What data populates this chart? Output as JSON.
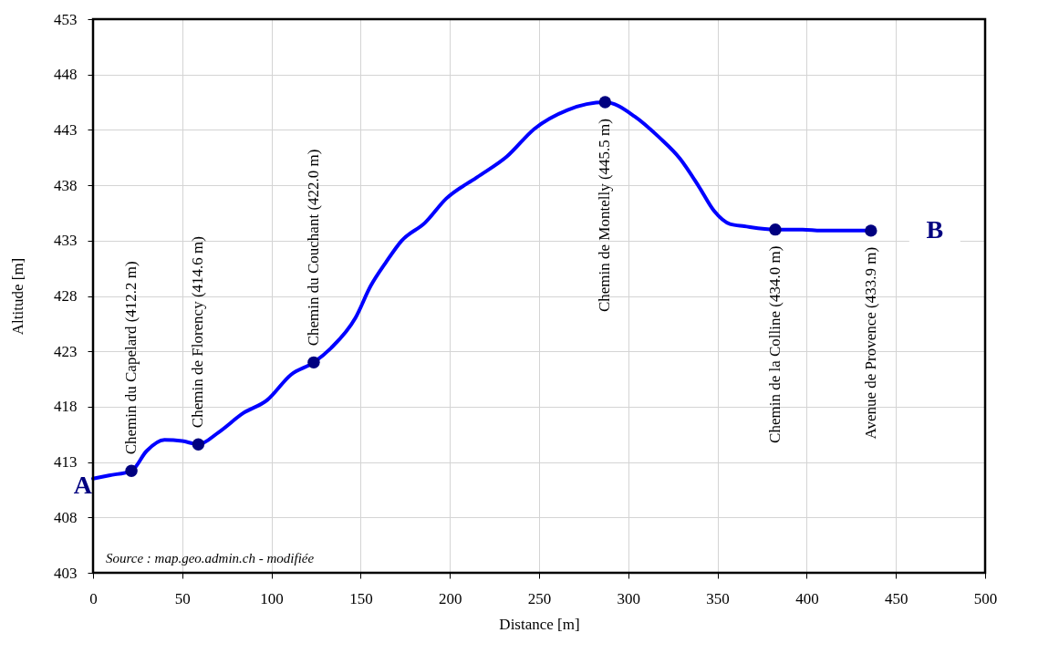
{
  "chart_data": {
    "type": "line",
    "xlabel": "Distance [m]",
    "ylabel": "Altitude [m]",
    "xlim": [
      0,
      500
    ],
    "xticks": [
      0,
      50,
      100,
      150,
      200,
      250,
      300,
      350,
      400,
      450,
      500
    ],
    "ylim": [
      403,
      453
    ],
    "yticks": [
      403,
      408,
      413,
      418,
      423,
      428,
      433,
      438,
      443,
      448,
      453
    ],
    "grid": true,
    "line_style": "solid",
    "series": [
      {
        "type": "line",
        "color": "#0000ff",
        "marker": "none",
        "x": [
          0,
          9,
          21.5,
          30,
          40,
          50,
          59,
          70.5,
          84,
          97.6,
          111,
          123.7,
          133.4,
          147,
          155.6,
          164,
          173,
          186,
          198,
          215,
          232,
          247.4,
          266,
          287,
          303.7,
          317.5,
          329,
          339.5,
          348,
          357,
          365,
          382.4,
          397.7,
          408,
          436
        ],
        "values": [
          411.5,
          411.8,
          412.2,
          414.0,
          415.0,
          414.9,
          414.6,
          415.7,
          417.4,
          418.6,
          420.9,
          422.0,
          423.3,
          426.0,
          428.9,
          431.0,
          433.0,
          434.6,
          436.8,
          438.7,
          440.6,
          443.1,
          444.8,
          445.5,
          444.2,
          442.3,
          440.4,
          437.9,
          435.7,
          434.5,
          434.3,
          434.0,
          434.0,
          433.9,
          433.9
        ]
      },
      {
        "type": "scatter",
        "color": "#000080",
        "marker": "circle",
        "x": [
          21.5,
          59,
          123.7,
          287,
          382.4,
          436
        ],
        "values": [
          412.2,
          414.6,
          422.0,
          445.5,
          434.0,
          433.9
        ]
      }
    ],
    "annotations": [
      {
        "text": "Chemin du Capelard (412.2 m)",
        "x": 21.5,
        "y": 412.2
      },
      {
        "text": "Chemin de Florency (414.6 m)",
        "x": 59,
        "y": 414.6
      },
      {
        "text": "Chemin du Couchant (422.0 m)",
        "x": 123.7,
        "y": 422.0
      },
      {
        "text": "Chemin de Montelly (445.5 m)",
        "x": 287,
        "y": 445.5
      },
      {
        "text": "Chemin de la Colline (434.0 m)",
        "x": 382.4,
        "y": 434.0
      },
      {
        "text": "Avenue de Provence (433.9 m)",
        "x": 436,
        "y": 433.9
      },
      {
        "text": "A",
        "x": 0,
        "y": 411.5
      },
      {
        "text": "B",
        "x": 436,
        "y": 433.9
      },
      "Source : map.geo.admin.ch - modifiée"
    ]
  }
}
